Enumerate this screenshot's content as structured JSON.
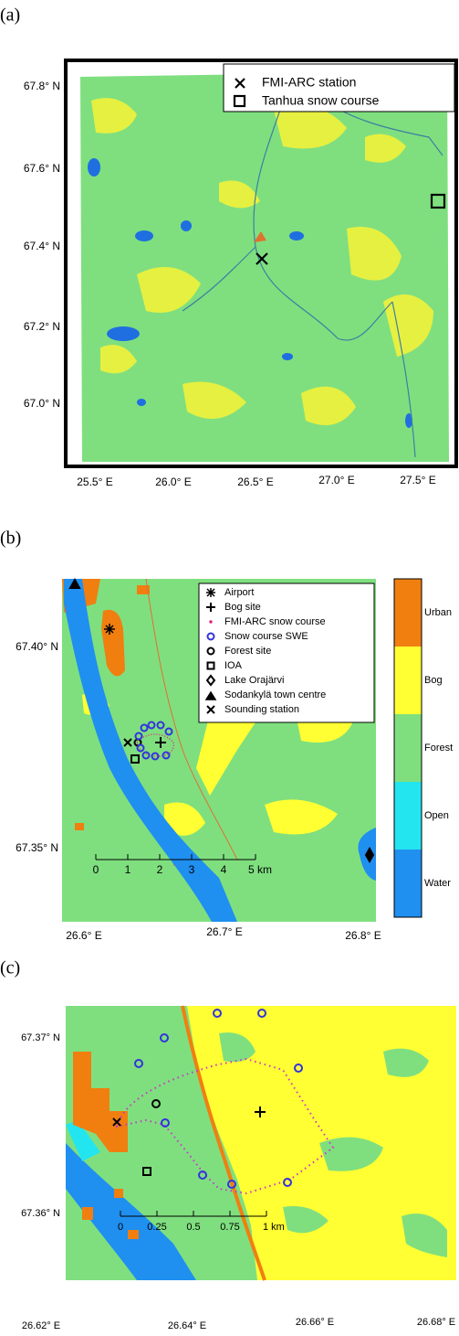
{
  "panels": [
    {
      "label": "(a)",
      "y_ticks": [
        "67.8° N",
        "67.6° N",
        "67.4° N",
        "67.2° N",
        "67.0° N"
      ],
      "x_ticks": [
        "25.5° E",
        "26.0° E",
        "26.5° E",
        "27.0° E",
        "27.5° E"
      ],
      "legend": [
        "FMI-ARC station",
        "Tanhua snow course"
      ]
    },
    {
      "label": "(b)",
      "y_ticks": [
        "67.40° N",
        "67.35° N"
      ],
      "x_ticks": [
        "26.6° E",
        "26.7° E",
        "26.8° E"
      ],
      "legend": [
        "Airport",
        "Bog site",
        "FMI-ARC snow course",
        "Snow course SWE",
        "Forest site",
        "IOA",
        "Lake Orajärvi",
        "Sodankylä town centre",
        "Sounding station"
      ],
      "scale_bar": [
        "0",
        "1",
        "2",
        "3",
        "4",
        "5 km"
      ],
      "colorbar": [
        "Urban",
        "Bog",
        "Forest",
        "Open",
        "Water"
      ]
    },
    {
      "label": "(c)",
      "y_ticks": [
        "67.37° N",
        "67.36° N"
      ],
      "x_ticks": [
        "26.62° E",
        "26.64° E",
        "26.66° E",
        "26.68° E"
      ],
      "scale_bar": [
        "0",
        "0.25",
        "0.5",
        "0.75",
        "1 km"
      ]
    }
  ]
}
